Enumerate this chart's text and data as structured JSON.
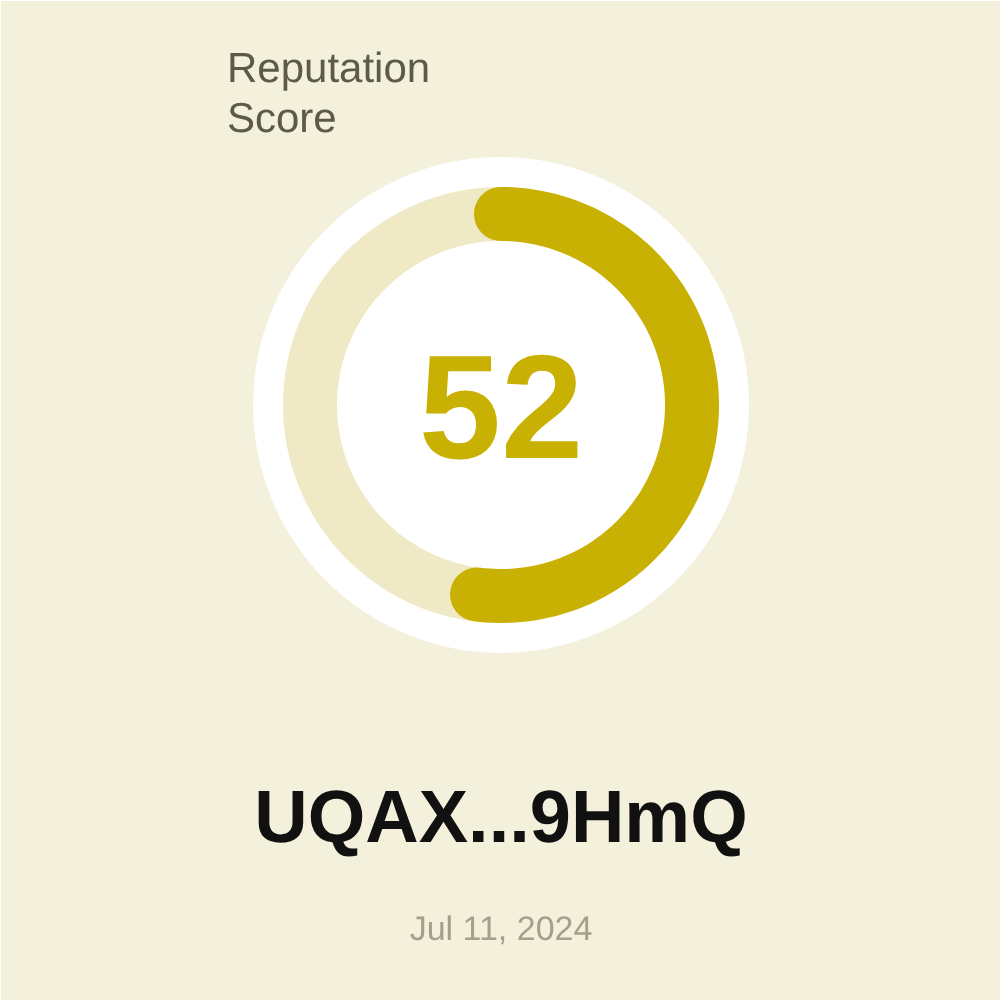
{
  "chart_data": {
    "type": "donut",
    "title": "Reputation Score",
    "categories": [
      null,
      null
    ],
    "values": [
      52,
      48
    ],
    "colors": [
      "#c9b104",
      "#efe9c6"
    ],
    "annotations": [
      "52",
      "UQAX...9HmQ",
      "Jul 11, 2024"
    ]
  }
}
